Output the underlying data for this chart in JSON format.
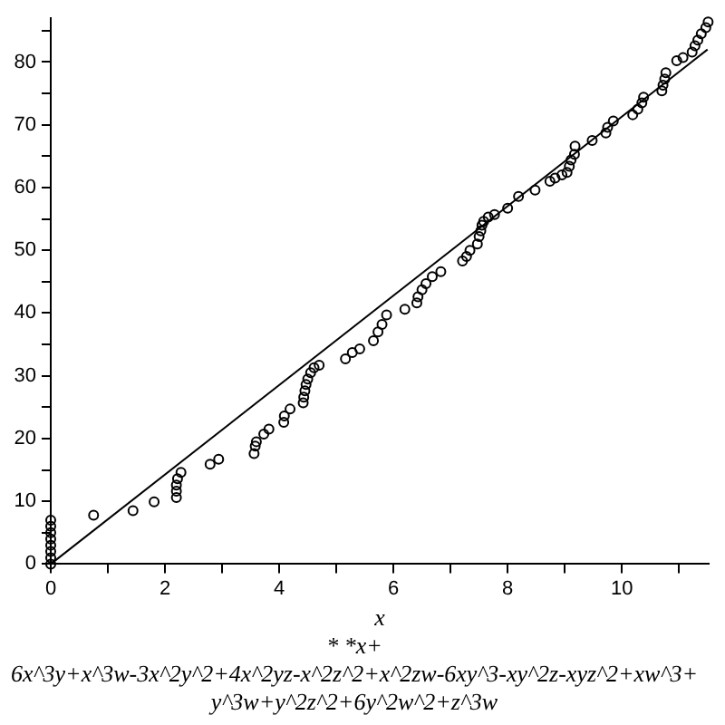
{
  "chart_data": {
    "type": "scatter",
    "title": "* *x+\n6x^3y+x^3w-3x^2y^2+4x^2yz-x^2z^2+x^2zw-6xy^3-xy^2z-xyz^2+xw^3+\ny^3w+y^2z^2+6y^2w^2+z^3w",
    "xlabel": "x",
    "xlim": [
      0,
      11.52
    ],
    "ylim": [
      0,
      87
    ],
    "xticks": [
      0,
      {
        "value": 1,
        "label": null
      },
      2,
      {
        "value": 3,
        "label": null
      },
      4,
      {
        "value": 5,
        "label": null
      },
      6,
      {
        "value": 7,
        "label": null
      },
      8,
      {
        "value": 9,
        "label": null
      },
      10,
      {
        "value": 11,
        "label": null
      }
    ],
    "yticks": [
      0,
      {
        "value": 5,
        "label": null
      },
      10,
      {
        "value": 15,
        "label": null
      },
      20,
      {
        "value": 25,
        "label": null
      },
      30,
      {
        "value": 35,
        "label": null
      },
      40,
      {
        "value": 45,
        "label": null
      },
      50,
      {
        "value": 55,
        "label": null
      },
      60,
      {
        "value": 65,
        "label": null
      },
      70,
      {
        "value": 75,
        "label": null
      },
      80,
      {
        "value": 85,
        "label": null
      }
    ],
    "grid": false,
    "legend": false,
    "marker": "circle",
    "series": [
      {
        "color": "#000000",
        "x": [
          0,
          0,
          0,
          0,
          0,
          0,
          0,
          0,
          0.75,
          1.44,
          1.81,
          2.2,
          2.2,
          2.2,
          2.22,
          2.28,
          2.79,
          2.94,
          3.56,
          3.58,
          3.6,
          3.73,
          3.82,
          4.08,
          4.09,
          4.19,
          4.42,
          4.43,
          4.45,
          4.47,
          4.5,
          4.55,
          4.61,
          4.7,
          5.16,
          5.28,
          5.41,
          5.65,
          5.73,
          5.8,
          5.88,
          6.2,
          6.41,
          6.43,
          6.5,
          6.57,
          6.68,
          6.83,
          7.21,
          7.28,
          7.34,
          7.47,
          7.5,
          7.53,
          7.55,
          7.58,
          7.66,
          7.77,
          8.0,
          8.19,
          8.48,
          8.74,
          8.83,
          8.95,
          9.04,
          9.08,
          9.11,
          9.17,
          9.18,
          9.48,
          9.72,
          9.75,
          9.85,
          10.19,
          10.28,
          10.35,
          10.38,
          10.7,
          10.72,
          10.75,
          10.77,
          10.96,
          11.07,
          11.23,
          11.28,
          11.33,
          11.39,
          11.47,
          11.51
        ],
        "values": [
          0,
          1,
          2,
          3,
          4,
          5,
          6,
          7,
          7.8,
          8.5,
          9.9,
          10.6,
          11.6,
          12.6,
          13.6,
          14.6,
          15.9,
          16.7,
          17.6,
          18.8,
          19.5,
          20.7,
          21.5,
          22.6,
          23.6,
          24.7,
          25.7,
          26.6,
          27.6,
          28.6,
          29.5,
          30.5,
          31.3,
          31.7,
          32.7,
          33.7,
          34.3,
          35.6,
          37,
          38.2,
          39.7,
          40.6,
          41.6,
          42.6,
          43.7,
          44.7,
          45.8,
          46.6,
          48.3,
          49,
          50,
          51,
          52.2,
          53.1,
          54,
          54.6,
          55.3,
          55.7,
          56.7,
          58.6,
          59.6,
          61,
          61.5,
          62,
          62.4,
          63.4,
          64.4,
          65.3,
          66.6,
          67.5,
          68.7,
          69.6,
          70.6,
          71.6,
          72.5,
          73.5,
          74.4,
          75.4,
          76.3,
          77.3,
          78.3,
          80.2,
          80.7,
          81.6,
          82.6,
          83.5,
          84.5,
          85.5,
          86.4
        ]
      },
      {
        "type": "line",
        "color": "#000000",
        "marker": "none",
        "line_style": "solid",
        "x": [
          0,
          11.5
        ],
        "values": [
          0,
          82
        ]
      }
    ]
  }
}
